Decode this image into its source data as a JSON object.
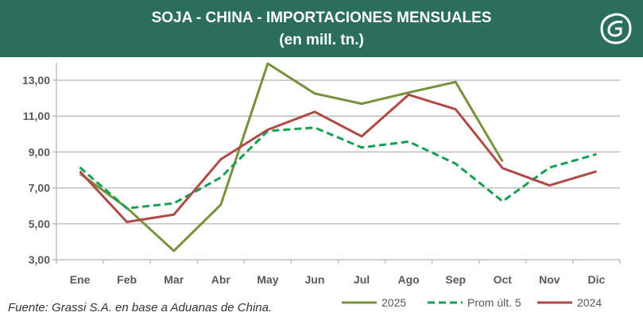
{
  "header": {
    "title": "SOJA - CHINA - IMPORTACIONES MENSUALES",
    "subtitle": "(en mill. tn.)"
  },
  "source": "Fuente: Grassi S.A. en base a Aduanas de China.",
  "colors": {
    "header": "#2b6e5c",
    "s2025": "#76923c",
    "prom": "#12a150",
    "s2024": "#b04a47",
    "grid": "#bfbfbf"
  },
  "chart_data": {
    "type": "line",
    "title": "SOJA - CHINA - IMPORTACIONES MENSUALES (en mill. tn.)",
    "xlabel": "",
    "ylabel": "",
    "categories": [
      "Ene",
      "Feb",
      "Mar",
      "Abr",
      "May",
      "Jun",
      "Jul",
      "Ago",
      "Sep",
      "Oct",
      "Nov",
      "Dic"
    ],
    "ylim": [
      3,
      14
    ],
    "yticks": [
      "3,00",
      "5,00",
      "7,00",
      "9,00",
      "11,00",
      "13,00"
    ],
    "ytick_values": [
      3,
      5,
      7,
      9,
      11,
      13
    ],
    "grid": true,
    "legend_position": "bottom-right",
    "series": [
      {
        "name": "2025",
        "style": "solid",
        "values": [
          7.8,
          5.89,
          3.49,
          6.06,
          13.93,
          12.26,
          11.69,
          12.31,
          12.9,
          8.47,
          null,
          null
        ]
      },
      {
        "name": "Prom últ. 5",
        "style": "dashed",
        "values": [
          8.14,
          5.86,
          6.14,
          7.58,
          10.17,
          10.36,
          9.25,
          9.58,
          8.35,
          6.25,
          8.13,
          8.88
        ]
      },
      {
        "name": "2024",
        "style": "solid",
        "values": [
          7.92,
          5.1,
          5.51,
          8.59,
          10.24,
          11.24,
          9.87,
          12.19,
          11.38,
          8.1,
          7.14,
          7.92
        ]
      }
    ]
  }
}
